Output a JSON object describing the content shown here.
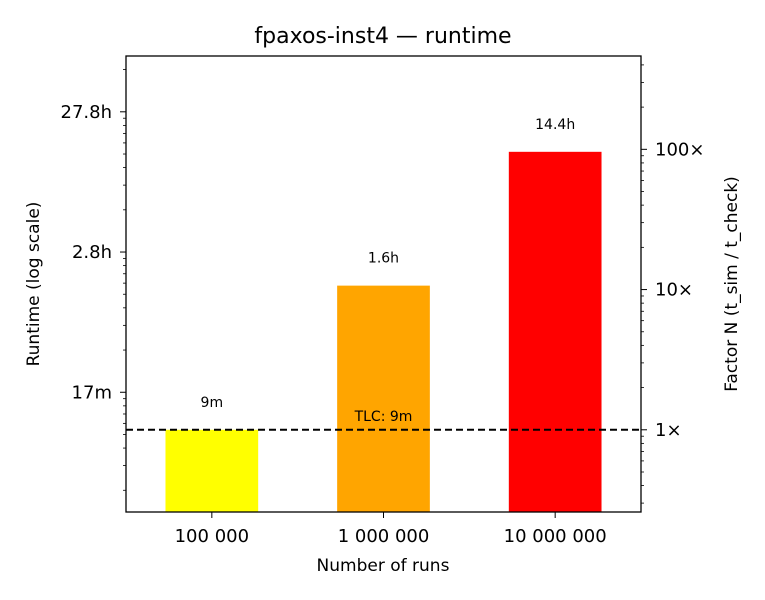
{
  "chart_data": {
    "type": "bar",
    "title": "fpaxos-inst4 — runtime",
    "xlabel": "Number of runs",
    "ylabel": "Runtime (log scale)",
    "ylabel_right": "Factor N (t_sim / t_check)",
    "y_scale": "log",
    "ylim_seconds": [
      140,
      250000
    ],
    "categories": [
      "100 000",
      "1 000 000",
      "10 000 000"
    ],
    "values_seconds": [
      540,
      5760,
      51840
    ],
    "value_labels": [
      "9m",
      "1.6h",
      "14.4h"
    ],
    "bar_colors": [
      "#ffff00",
      "#ffa500",
      "#ff0000"
    ],
    "y_ticks": [
      {
        "value": 1000,
        "label": "17m"
      },
      {
        "value": 10000,
        "label": "2.8h"
      },
      {
        "value": 100000,
        "label": "27.8h"
      }
    ],
    "right_ticks": [
      {
        "value": 540,
        "label": "1×"
      },
      {
        "value": 5400,
        "label": "10×"
      },
      {
        "value": 54000,
        "label": "100×"
      }
    ],
    "reference_line": {
      "value_seconds": 540,
      "label": "TLC: 9m",
      "style": "dashed",
      "color": "#000000"
    },
    "grid": false,
    "legend": "none"
  }
}
